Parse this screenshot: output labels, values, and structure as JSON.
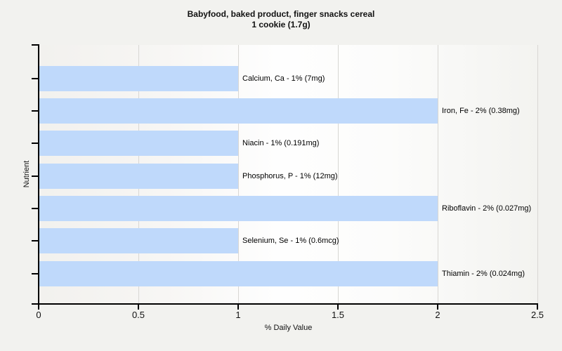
{
  "chart_data": {
    "type": "bar",
    "orientation": "horizontal",
    "title_line1": "Babyfood, baked product, finger snacks cereal",
    "title_line2": "1 cookie (1.7g)",
    "xlabel": "% Daily Value",
    "ylabel": "Nutrient",
    "xlim": [
      0,
      2.5
    ],
    "xticks": [
      0,
      0.5,
      1,
      1.5,
      2,
      2.5
    ],
    "xtick_labels": [
      "0",
      "0.5",
      "1",
      "1.5",
      "2",
      "2.5"
    ],
    "grid": "vertical-at-xticks",
    "legend": "none",
    "categories": [
      "Calcium, Ca",
      "Iron, Fe",
      "Niacin",
      "Phosphorus, P",
      "Riboflavin",
      "Selenium, Se",
      "Thiamin"
    ],
    "values": [
      1,
      2,
      1,
      1,
      2,
      1,
      2
    ],
    "bar_labels": [
      "Calcium, Ca - 1% (7mg)",
      "Iron, Fe - 2% (0.38mg)",
      "Niacin - 1% (0.191mg)",
      "Phosphorus, P - 1% (12mg)",
      "Riboflavin - 2% (0.027mg)",
      "Selenium, Se - 1% (0.6mcg)",
      "Thiamin - 2% (0.024mg)"
    ],
    "colors": {
      "bar": "#bfd9fb",
      "figure_background": "#f2f2ef",
      "gridline": "#d8d7d4",
      "axis": "#000000",
      "text": "#111111"
    }
  }
}
